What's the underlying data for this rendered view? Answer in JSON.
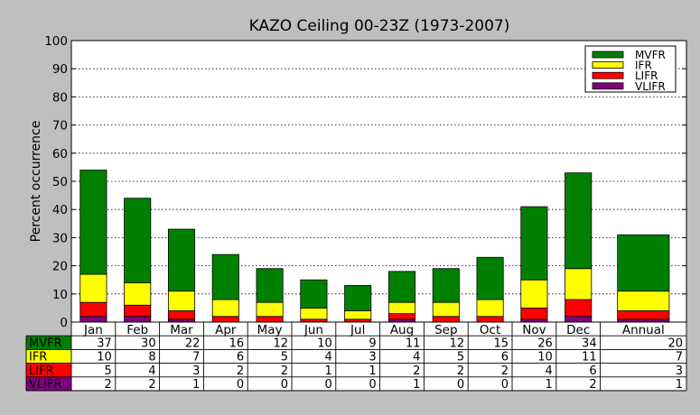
{
  "chart_data": {
    "type": "bar",
    "stacked": true,
    "title": "KAZO Ceiling 00-23Z (1973-2007)",
    "ylabel": "Percent occurrence",
    "xlabel": "",
    "ylim": [
      0,
      100
    ],
    "yticks": [
      0,
      10,
      20,
      30,
      40,
      50,
      60,
      70,
      80,
      90,
      100
    ],
    "grid": "horizontal dotted",
    "legend_position": "top-right",
    "categories": [
      "Jan",
      "Feb",
      "Mar",
      "Apr",
      "May",
      "Jun",
      "Jul",
      "Aug",
      "Sep",
      "Oct",
      "Nov",
      "Dec",
      "Annual"
    ],
    "series": [
      {
        "name": "VLIFR",
        "color": "#800080",
        "values": [
          2,
          2,
          1,
          0,
          0,
          0,
          0,
          1,
          0,
          0,
          1,
          2,
          1
        ]
      },
      {
        "name": "LIFR",
        "color": "#ff0000",
        "values": [
          5,
          4,
          3,
          2,
          2,
          1,
          1,
          2,
          2,
          2,
          4,
          6,
          3
        ]
      },
      {
        "name": "IFR",
        "color": "#ffff00",
        "values": [
          10,
          8,
          7,
          6,
          5,
          4,
          3,
          4,
          5,
          6,
          10,
          11,
          7
        ]
      },
      {
        "name": "MVFR",
        "color": "#008000",
        "values": [
          37,
          30,
          22,
          16,
          12,
          10,
          9,
          11,
          12,
          15,
          26,
          34,
          20
        ]
      }
    ],
    "legend_order": [
      "MVFR",
      "IFR",
      "LIFR",
      "VLIFR"
    ],
    "table_row_order": [
      "MVFR",
      "IFR",
      "LIFR",
      "VLIFR"
    ]
  }
}
